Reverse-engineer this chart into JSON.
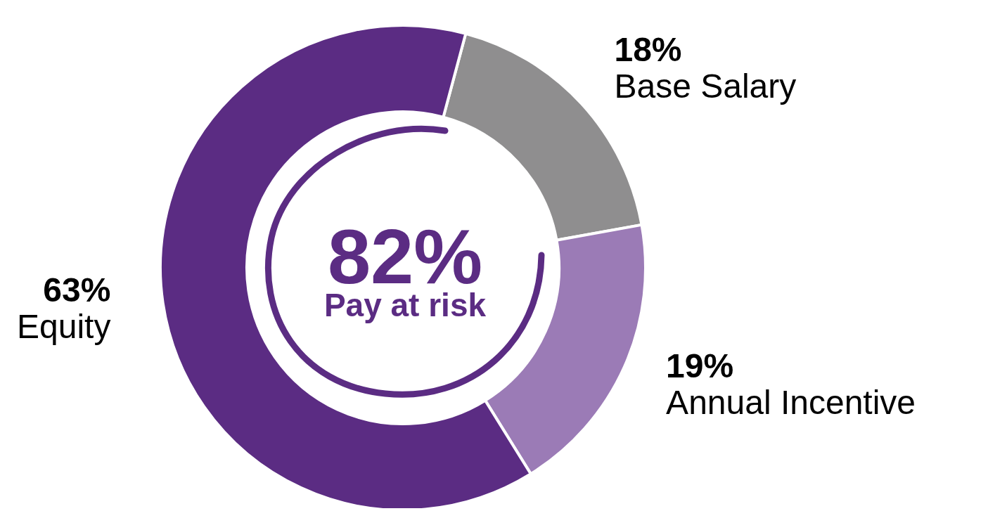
{
  "chart_data": {
    "type": "donut",
    "categories": [
      "Base Salary",
      "Annual Incentive",
      "Equity"
    ],
    "values": [
      18,
      19,
      63
    ],
    "value_labels": [
      "18%",
      "19%",
      "63%"
    ],
    "colors": [
      "#8f8e8f",
      "#9b7bb6",
      "#5b2c83"
    ],
    "annotations": [
      "82%",
      "Pay at risk"
    ]
  }
}
